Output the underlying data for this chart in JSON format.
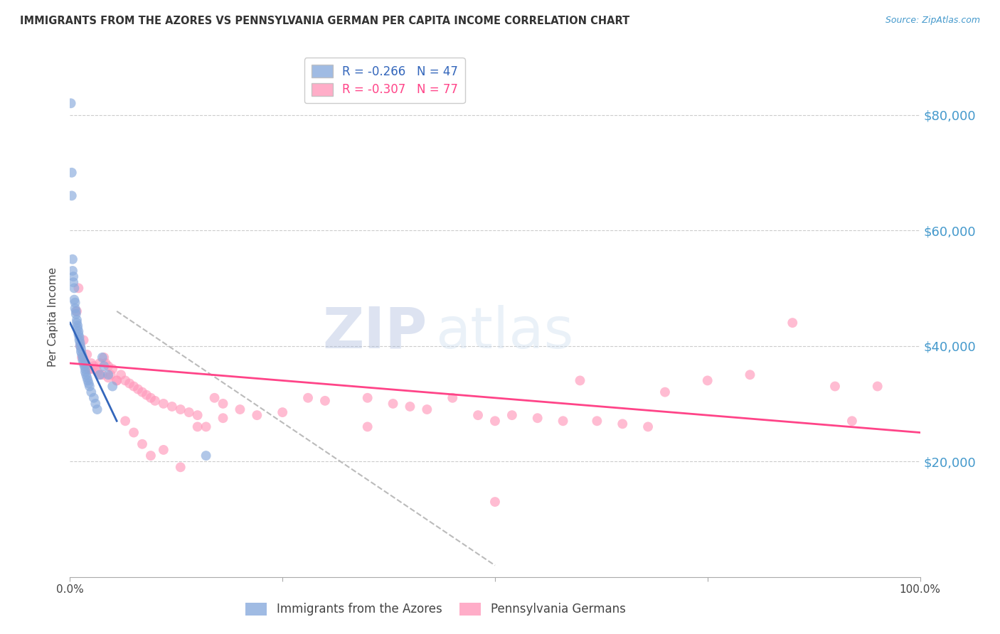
{
  "title": "IMMIGRANTS FROM THE AZORES VS PENNSYLVANIA GERMAN PER CAPITA INCOME CORRELATION CHART",
  "source": "Source: ZipAtlas.com",
  "ylabel": "Per Capita Income",
  "ylim": [
    0,
    90000
  ],
  "xlim": [
    0,
    1.0
  ],
  "blue_color": "#88AADD",
  "pink_color": "#FF99BB",
  "blue_line_color": "#3366BB",
  "pink_line_color": "#FF4488",
  "gray_line_color": "#BBBBBB",
  "blue_R": -0.266,
  "blue_N": 47,
  "pink_R": -0.307,
  "pink_N": 77,
  "legend_label_blue": "Immigrants from the Azores",
  "legend_label_pink": "Pennsylvania Germans",
  "watermark": "ZIPAtlas",
  "blue_x": [
    0.001,
    0.002,
    0.002,
    0.003,
    0.003,
    0.004,
    0.004,
    0.005,
    0.005,
    0.006,
    0.006,
    0.007,
    0.007,
    0.008,
    0.008,
    0.009,
    0.009,
    0.01,
    0.01,
    0.011,
    0.011,
    0.012,
    0.012,
    0.013,
    0.013,
    0.014,
    0.015,
    0.015,
    0.016,
    0.017,
    0.018,
    0.018,
    0.019,
    0.02,
    0.021,
    0.022,
    0.023,
    0.025,
    0.028,
    0.03,
    0.032,
    0.035,
    0.038,
    0.04,
    0.045,
    0.05,
    0.16
  ],
  "blue_y": [
    82000,
    70000,
    66000,
    55000,
    53000,
    52000,
    51000,
    50000,
    48000,
    47500,
    46500,
    46000,
    45500,
    44500,
    44000,
    43500,
    43000,
    42500,
    42000,
    41500,
    41000,
    40500,
    40000,
    39500,
    39000,
    38500,
    38000,
    37500,
    37000,
    36500,
    36000,
    35500,
    35000,
    34500,
    34000,
    33500,
    33000,
    32000,
    31000,
    30000,
    29000,
    35000,
    38000,
    36500,
    35000,
    33000,
    21000
  ],
  "pink_x": [
    0.008,
    0.01,
    0.012,
    0.014,
    0.016,
    0.018,
    0.02,
    0.022,
    0.025,
    0.028,
    0.03,
    0.032,
    0.035,
    0.038,
    0.04,
    0.042,
    0.045,
    0.048,
    0.05,
    0.055,
    0.06,
    0.065,
    0.07,
    0.075,
    0.08,
    0.085,
    0.09,
    0.095,
    0.1,
    0.11,
    0.12,
    0.13,
    0.14,
    0.15,
    0.16,
    0.17,
    0.18,
    0.2,
    0.22,
    0.25,
    0.28,
    0.3,
    0.35,
    0.38,
    0.4,
    0.42,
    0.45,
    0.48,
    0.5,
    0.52,
    0.55,
    0.58,
    0.6,
    0.62,
    0.65,
    0.68,
    0.7,
    0.75,
    0.8,
    0.85,
    0.9,
    0.92,
    0.95,
    0.025,
    0.035,
    0.045,
    0.055,
    0.065,
    0.075,
    0.085,
    0.095,
    0.11,
    0.13,
    0.15,
    0.18,
    0.35,
    0.5
  ],
  "pink_y": [
    46000,
    50000,
    40000,
    38000,
    41000,
    37000,
    38500,
    36000,
    37000,
    36500,
    36000,
    35500,
    37000,
    35000,
    38000,
    37000,
    36500,
    35000,
    36000,
    34000,
    35000,
    34000,
    33500,
    33000,
    32500,
    32000,
    31500,
    31000,
    30500,
    30000,
    29500,
    29000,
    28500,
    28000,
    26000,
    31000,
    30000,
    29000,
    28000,
    28500,
    31000,
    30500,
    31000,
    30000,
    29500,
    29000,
    31000,
    28000,
    27000,
    28000,
    27500,
    27000,
    34000,
    27000,
    26500,
    26000,
    32000,
    34000,
    35000,
    44000,
    33000,
    27000,
    33000,
    36000,
    35000,
    34500,
    34000,
    27000,
    25000,
    23000,
    21000,
    22000,
    19000,
    26000,
    27500,
    26000,
    13000
  ],
  "blue_line_x": [
    0.0,
    0.055
  ],
  "blue_line_y": [
    44000,
    27000
  ],
  "pink_line_x": [
    0.0,
    1.0
  ],
  "pink_line_y": [
    37000,
    25000
  ],
  "gray_line_x": [
    0.055,
    0.5
  ],
  "gray_line_y": [
    46000,
    2000
  ],
  "ytick_values": [
    20000,
    40000,
    60000,
    80000
  ],
  "ytick_labels": [
    "$20,000",
    "$40,000",
    "$60,000",
    "$80,000"
  ],
  "xtick_values": [
    0.0,
    0.25,
    0.5,
    0.75,
    1.0
  ],
  "xtick_labels": [
    "0.0%",
    "",
    "",
    "",
    "100.0%"
  ]
}
